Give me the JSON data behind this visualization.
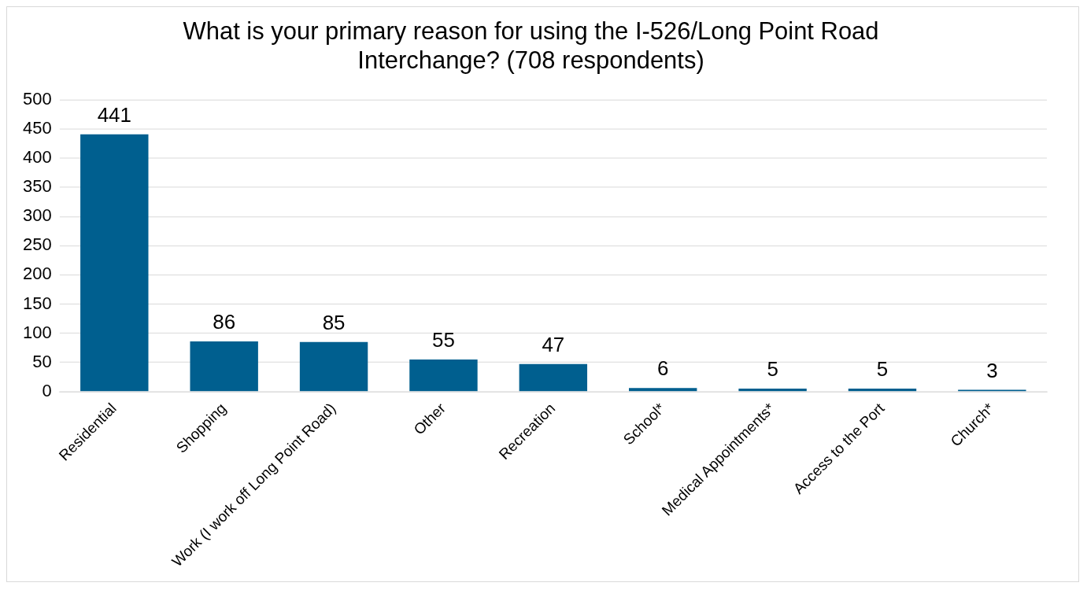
{
  "chart_data": {
    "type": "bar",
    "title": "What is your primary reason for using the I-526/Long Point Road Interchange? (708 respondents)",
    "categories": [
      "Residential",
      "Shopping",
      "Work (I work off Long Point Road)",
      "Other",
      "Recreation",
      "School*",
      "Medical Appointments*",
      "Access to the Port",
      "Church*"
    ],
    "values": [
      441,
      86,
      85,
      55,
      47,
      6,
      5,
      5,
      3
    ],
    "color": "#005f8f",
    "ylim": [
      0,
      500
    ],
    "yticks": [
      0,
      50,
      100,
      150,
      200,
      250,
      300,
      350,
      400,
      450,
      500
    ],
    "grid": "y",
    "data_labels": true,
    "legend": false
  }
}
